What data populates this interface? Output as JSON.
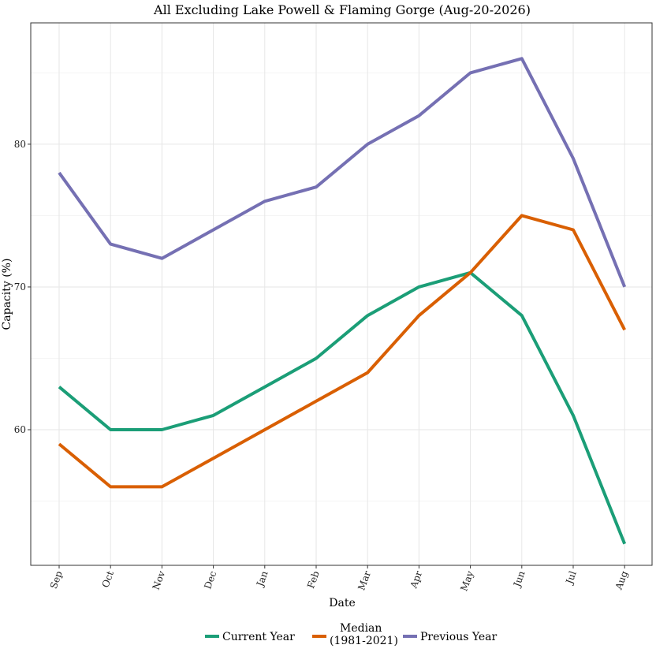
{
  "chart_data": {
    "type": "line",
    "title": "All Excluding Lake Powell & Flaming Gorge (Aug-20-2026)",
    "xlabel": "Date",
    "ylabel": "Capacity (%)",
    "categories": [
      "Sep",
      "Oct",
      "Nov",
      "Dec",
      "Jan",
      "Feb",
      "Mar",
      "Apr",
      "May",
      "Jun",
      "Jul",
      "Aug"
    ],
    "ylim": [
      50.5,
      88.5
    ],
    "yticks": [
      60,
      70,
      80
    ],
    "grid": true,
    "legend_position": "bottom",
    "series": [
      {
        "name": "Current Year",
        "color": "#1b9e77",
        "values": [
          63,
          60,
          60,
          61,
          63,
          65,
          68,
          70,
          71,
          68,
          61,
          52
        ]
      },
      {
        "name": "Median (1981-2021)",
        "label_lines": [
          "Median",
          "(1981-2021)"
        ],
        "color": "#d95f02",
        "values": [
          59,
          56,
          56,
          58,
          60,
          62,
          64,
          68,
          71,
          75,
          74,
          67
        ]
      },
      {
        "name": "Previous Year",
        "color": "#7570b3",
        "values": [
          78,
          73,
          72,
          74,
          76,
          77,
          80,
          82,
          85,
          86,
          79,
          70
        ]
      }
    ]
  }
}
